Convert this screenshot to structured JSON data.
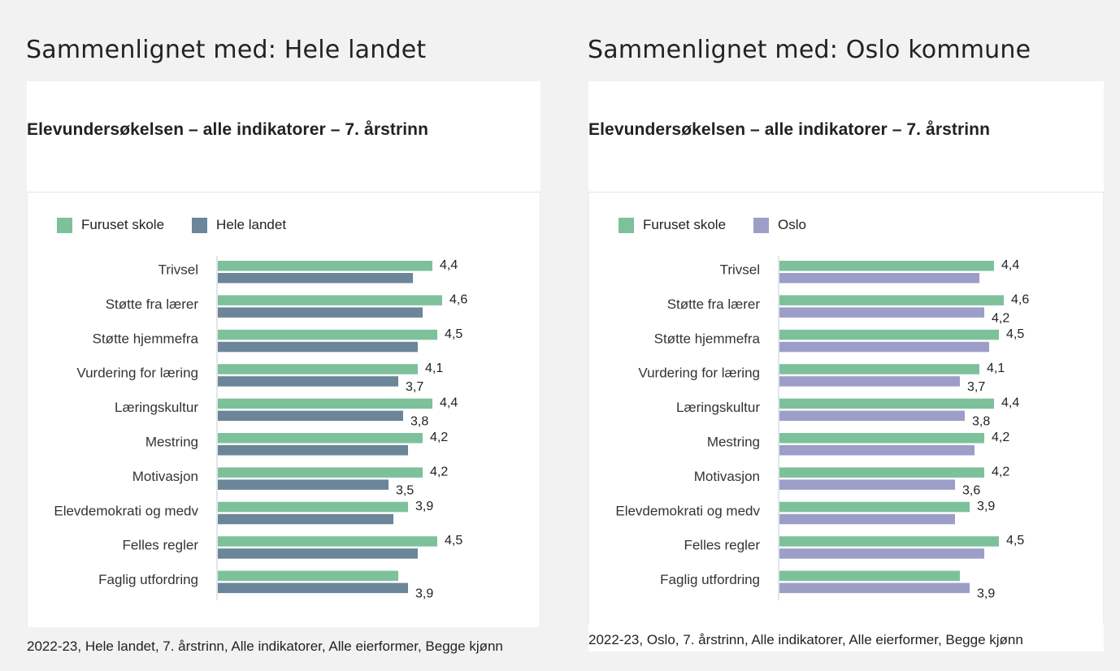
{
  "colors": {
    "school": "#7dc19b",
    "national": "#6b8599",
    "oslo": "#9c9ec8"
  },
  "panels": [
    {
      "heading": "Sammenlignet med: Hele landet",
      "footer": "2022-23, Hele landet, 7. årstrinn, Alle indikatorer, Alle eierformer, Begge kjønn"
    },
    {
      "heading": "Sammenlignet med: Oslo kommune",
      "footer": "2022-23, Oslo, 7. årstrinn, Alle indikatorer, Alle eierformer, Begge kjønn"
    }
  ],
  "chart_data": [
    {
      "type": "bar",
      "orientation": "horizontal",
      "title": "Elevundersøkelsen – alle indikatorer – 7. årstrinn",
      "legend_position": "top-left",
      "categories": [
        "Trivsel",
        "Støtte fra lærer",
        "Støtte hjemmefra",
        "Vurdering for læring",
        "Læringskultur",
        "Mestring",
        "Motivasjon",
        "Elevdemokrati og medv",
        "Felles regler",
        "Faglig utfordring"
      ],
      "series": [
        {
          "name": "Furuset skole",
          "color": "#7dc19b",
          "values": [
            4.4,
            4.6,
            4.5,
            4.1,
            4.4,
            4.2,
            4.2,
            3.9,
            4.5,
            3.7
          ],
          "labels": [
            "4,4",
            "4,6",
            "4,5",
            "4,1",
            "4,4",
            "4,2",
            "4,2",
            "3,9",
            "4,5",
            ""
          ]
        },
        {
          "name": "Hele landet",
          "color": "#6b8599",
          "values": [
            4.0,
            4.2,
            4.1,
            3.7,
            3.8,
            3.9,
            3.5,
            3.6,
            4.1,
            3.9
          ],
          "labels": [
            "",
            "",
            "",
            "3,7",
            "3,8",
            "",
            "3,5",
            "",
            "",
            "3,9"
          ]
        }
      ],
      "xlim": [
        0,
        4.6
      ]
    },
    {
      "type": "bar",
      "orientation": "horizontal",
      "title": "Elevundersøkelsen – alle indikatorer – 7. årstrinn",
      "legend_position": "top-left",
      "categories": [
        "Trivsel",
        "Støtte fra lærer",
        "Støtte hjemmefra",
        "Vurdering for læring",
        "Læringskultur",
        "Mestring",
        "Motivasjon",
        "Elevdemokrati og medv",
        "Felles regler",
        "Faglig utfordring"
      ],
      "series": [
        {
          "name": "Furuset skole",
          "color": "#7dc19b",
          "values": [
            4.4,
            4.6,
            4.5,
            4.1,
            4.4,
            4.2,
            4.2,
            3.9,
            4.5,
            3.7
          ],
          "labels": [
            "4,4",
            "4,6",
            "4,5",
            "4,1",
            "4,4",
            "4,2",
            "4,2",
            "3,9",
            "4,5",
            ""
          ]
        },
        {
          "name": "Oslo",
          "color": "#9c9ec8",
          "values": [
            4.1,
            4.2,
            4.3,
            3.7,
            3.8,
            4.0,
            3.6,
            3.6,
            4.2,
            3.9
          ],
          "labels": [
            "",
            "4,2",
            "",
            "3,7",
            "3,8",
            "",
            "3,6",
            "",
            "",
            "3,9"
          ]
        }
      ],
      "xlim": [
        0,
        4.6
      ]
    }
  ]
}
